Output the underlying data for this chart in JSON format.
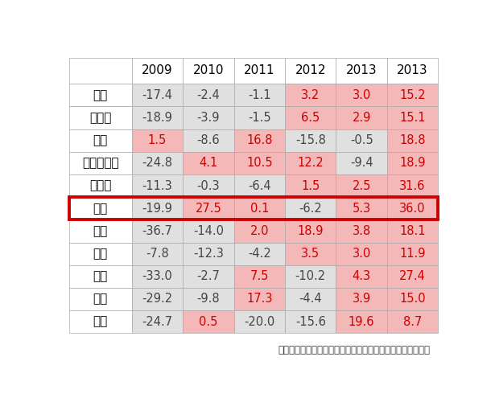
{
  "columns": [
    "2009",
    "2010",
    "2011",
    "2012",
    "2013",
    "2013"
  ],
  "rows": [
    "全国",
    "北海道",
    "東北",
    "北関東甲信",
    "首都圈",
    "北陸",
    "東海",
    "関西",
    "中国",
    "四国",
    "九州"
  ],
  "values": [
    [
      -17.4,
      -2.4,
      -1.1,
      3.2,
      3.0,
      15.2
    ],
    [
      -18.9,
      -3.9,
      -1.5,
      6.5,
      2.9,
      15.1
    ],
    [
      1.5,
      -8.6,
      16.8,
      -15.8,
      -0.5,
      18.8
    ],
    [
      -24.8,
      4.1,
      10.5,
      12.2,
      -9.4,
      18.9
    ],
    [
      -11.3,
      -0.3,
      -6.4,
      1.5,
      2.5,
      31.6
    ],
    [
      -19.9,
      27.5,
      0.1,
      -6.2,
      5.3,
      36.0
    ],
    [
      -36.7,
      -14.0,
      2.0,
      18.9,
      3.8,
      18.1
    ],
    [
      -7.8,
      -12.3,
      -4.2,
      3.5,
      3.0,
      11.9
    ],
    [
      -33.0,
      -2.7,
      7.5,
      -10.2,
      4.3,
      27.4
    ],
    [
      -29.2,
      -9.8,
      17.3,
      -4.4,
      3.9,
      15.0
    ],
    [
      -24.7,
      0.5,
      -20.0,
      -15.6,
      19.6,
      8.7
    ]
  ],
  "highlight_row": 5,
  "positive_color": "#f4b8b8",
  "positive_text_color": "#cc0000",
  "negative_color": "#e0e0e0",
  "negative_text_color": "#444444",
  "highlight_border_color": "#cc0000",
  "caption": "（日本政策投資銀行「地域別設備投資計画調査」より作成）",
  "caption_fontsize": 8.5,
  "cell_fontsize": 10.5,
  "header_fontsize": 11,
  "row_label_fontsize": 11,
  "grid_color": "#aaaaaa",
  "header_bg": "#ffffff",
  "row_label_bg": "#ffffff"
}
